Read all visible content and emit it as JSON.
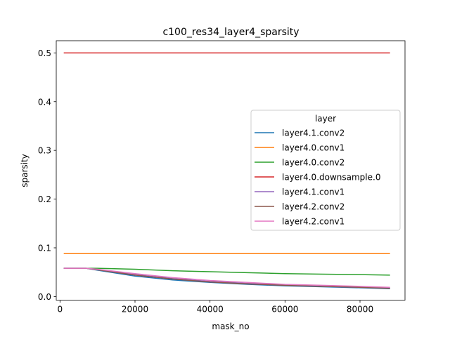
{
  "chart_data": {
    "type": "line",
    "title": "c100_res34_layer4_sparsity",
    "xlabel": "mask_no",
    "ylabel": "sparsity",
    "xlim": [
      -1000,
      92000
    ],
    "ylim": [
      -0.0075,
      0.525
    ],
    "xticks": [
      0,
      20000,
      40000,
      60000,
      80000
    ],
    "xtick_labels": [
      "0",
      "20000",
      "40000",
      "60000",
      "80000"
    ],
    "yticks": [
      0.0,
      0.1,
      0.2,
      0.3,
      0.4,
      0.5
    ],
    "ytick_labels": [
      "0.0",
      "0.1",
      "0.2",
      "0.3",
      "0.4",
      "0.5"
    ],
    "grid": false,
    "legend": {
      "title": "layer",
      "placement": "center-right"
    },
    "x": [
      1000,
      7000,
      10000,
      20000,
      30000,
      40000,
      50000,
      60000,
      70000,
      80000,
      88000
    ],
    "series": [
      {
        "name": "layer4.1.conv2",
        "color": "#1f77b4",
        "values": [
          0.058,
          0.058,
          0.054,
          0.042,
          0.034,
          0.029,
          0.025,
          0.022,
          0.02,
          0.018,
          0.016
        ]
      },
      {
        "name": "layer4.0.conv1",
        "color": "#ff7f0e",
        "values": [
          0.088,
          0.088,
          0.088,
          0.088,
          0.088,
          0.088,
          0.088,
          0.088,
          0.088,
          0.088,
          0.088
        ]
      },
      {
        "name": "layer4.0.conv2",
        "color": "#2ca02c",
        "values": [
          0.058,
          0.058,
          0.058,
          0.056,
          0.053,
          0.051,
          0.049,
          0.047,
          0.046,
          0.045,
          0.044
        ]
      },
      {
        "name": "layer4.0.downsample.0",
        "color": "#d62728",
        "values": [
          0.5,
          0.5,
          0.5,
          0.5,
          0.5,
          0.5,
          0.5,
          0.5,
          0.5,
          0.5,
          0.5
        ]
      },
      {
        "name": "layer4.1.conv1",
        "color": "#9467bd",
        "values": [
          0.058,
          0.058,
          0.055,
          0.045,
          0.037,
          0.031,
          0.027,
          0.024,
          0.021,
          0.019,
          0.018
        ]
      },
      {
        "name": "layer4.2.conv2",
        "color": "#8c564b",
        "values": [
          0.058,
          0.058,
          0.055,
          0.044,
          0.036,
          0.03,
          0.026,
          0.023,
          0.021,
          0.019,
          0.017
        ]
      },
      {
        "name": "layer4.2.conv1",
        "color": "#e377c2",
        "values": [
          0.058,
          0.058,
          0.056,
          0.047,
          0.039,
          0.033,
          0.029,
          0.025,
          0.023,
          0.021,
          0.019
        ]
      }
    ]
  }
}
